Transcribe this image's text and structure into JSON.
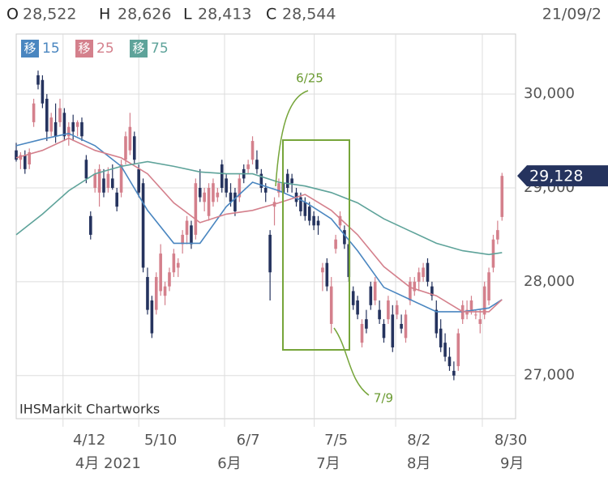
{
  "header": {
    "items": [
      {
        "label": "O",
        "value": "28,522"
      },
      {
        "label": "H",
        "value": "28,626"
      },
      {
        "label": "L",
        "value": "28,413"
      },
      {
        "label": "C",
        "value": "28,544"
      }
    ],
    "date": "21/09/2"
  },
  "chart_data": {
    "type": "candlestick",
    "source": "IHSMarkit Chartworks",
    "legend_prefix": "移",
    "up_color": "#d4808c",
    "down_color": "#25335e",
    "candles": [
      [
        29400,
        29480,
        29280,
        29300
      ],
      [
        29300,
        29380,
        29200,
        29350
      ],
      [
        29350,
        29400,
        29150,
        29200
      ],
      [
        29250,
        29420,
        29200,
        29380
      ],
      [
        29700,
        29950,
        29650,
        29900
      ],
      [
        30200,
        30250,
        30050,
        30100
      ],
      [
        30150,
        30200,
        29850,
        29900
      ],
      [
        29950,
        30000,
        29500,
        29600
      ],
      [
        29600,
        29800,
        29550,
        29750
      ],
      [
        29700,
        29900,
        29480,
        29550
      ],
      [
        29700,
        29950,
        29650,
        29850
      ],
      [
        29800,
        29850,
        29500,
        29550
      ],
      [
        29550,
        29700,
        29450,
        29650
      ],
      [
        29700,
        29780,
        29500,
        29600
      ],
      [
        29650,
        29720,
        29550,
        29700
      ],
      [
        29700,
        29750,
        29500,
        29550
      ],
      [
        29300,
        29350,
        29050,
        29100
      ],
      [
        28700,
        28750,
        28450,
        28500
      ],
      [
        29000,
        29200,
        28950,
        29150
      ],
      [
        28950,
        29250,
        28800,
        29200
      ],
      [
        29100,
        29200,
        28900,
        28950
      ],
      [
        29000,
        29220,
        28950,
        29150
      ],
      [
        29100,
        29250,
        28980,
        29000
      ],
      [
        28950,
        29000,
        28750,
        28800
      ],
      [
        28950,
        29300,
        28900,
        29250
      ],
      [
        29300,
        29600,
        29250,
        29550
      ],
      [
        29400,
        29800,
        29350,
        29650
      ],
      [
        29550,
        29600,
        29250,
        29300
      ],
      [
        29200,
        29250,
        28900,
        28950
      ],
      [
        29050,
        29100,
        28100,
        28150
      ],
      [
        28050,
        28150,
        27650,
        27700
      ],
      [
        27800,
        27850,
        27400,
        27450
      ],
      [
        27700,
        28100,
        27650,
        28050
      ],
      [
        27900,
        28400,
        27850,
        28300
      ],
      [
        27850,
        28000,
        27750,
        27950
      ],
      [
        27950,
        28150,
        27900,
        28100
      ],
      [
        28100,
        28350,
        28050,
        28300
      ],
      [
        28150,
        28250,
        28050,
        28200
      ],
      [
        28400,
        28550,
        28300,
        28500
      ],
      [
        28500,
        28700,
        28400,
        28650
      ],
      [
        28600,
        28650,
        28350,
        28400
      ],
      [
        28500,
        29100,
        28450,
        29050
      ],
      [
        29000,
        29200,
        28850,
        28900
      ],
      [
        28850,
        29000,
        28750,
        28950
      ],
      [
        28700,
        29050,
        28650,
        29000
      ],
      [
        28850,
        29100,
        28800,
        29050
      ],
      [
        28900,
        29000,
        28850,
        28950
      ],
      [
        29250,
        29300,
        28950,
        29000
      ],
      [
        29100,
        29150,
        28900,
        28950
      ],
      [
        28950,
        29050,
        28800,
        28850
      ],
      [
        28950,
        29000,
        28700,
        28750
      ],
      [
        28900,
        29150,
        28850,
        29100
      ],
      [
        29200,
        29250,
        29050,
        29100
      ],
      [
        29200,
        29300,
        29150,
        29250
      ],
      [
        29300,
        29550,
        29250,
        29500
      ],
      [
        29300,
        29400,
        29150,
        29200
      ],
      [
        29150,
        29200,
        28950,
        29000
      ],
      [
        29000,
        29050,
        28850,
        28950
      ],
      [
        28500,
        28550,
        27800,
        28100
      ],
      [
        28800,
        28900,
        28600,
        28850
      ],
      [
        28950,
        29100,
        28900,
        29050
      ],
      [
        29050,
        29100,
        28900,
        28950
      ],
      [
        29150,
        29200,
        28950,
        29000
      ],
      [
        29100,
        29150,
        28950,
        29050
      ],
      [
        28950,
        29000,
        28800,
        28850
      ],
      [
        28900,
        28950,
        28700,
        28750
      ],
      [
        28850,
        28900,
        28650,
        28700
      ],
      [
        28800,
        28850,
        28600,
        28650
      ],
      [
        28700,
        28750,
        28550,
        28600
      ],
      [
        28650,
        28700,
        28500,
        28600
      ],
      [
        28100,
        28200,
        27900,
        28150
      ],
      [
        28200,
        28250,
        27900,
        27950
      ],
      [
        27550,
        28050,
        27450,
        27950
      ],
      [
        28350,
        28500,
        28300,
        28450
      ],
      [
        28600,
        28750,
        28550,
        28700
      ],
      [
        28550,
        28600,
        28350,
        28400
      ],
      [
        28400,
        28450,
        28000,
        28050
      ],
      [
        27900,
        27950,
        27700,
        27750
      ],
      [
        27800,
        27850,
        27600,
        27650
      ],
      [
        27350,
        27600,
        27300,
        27550
      ],
      [
        27600,
        27700,
        27450,
        27500
      ],
      [
        27950,
        28000,
        27700,
        27750
      ],
      [
        27800,
        28050,
        27750,
        28000
      ],
      [
        27700,
        27800,
        27550,
        27600
      ],
      [
        27550,
        27600,
        27350,
        27400
      ],
      [
        27600,
        27850,
        27550,
        27800
      ],
      [
        27650,
        27750,
        27250,
        27300
      ],
      [
        27650,
        27800,
        27600,
        27750
      ],
      [
        27550,
        27650,
        27450,
        27500
      ],
      [
        27400,
        27700,
        27350,
        27650
      ],
      [
        27800,
        28050,
        27750,
        28000
      ],
      [
        27900,
        28050,
        27850,
        28000
      ],
      [
        28000,
        28150,
        27900,
        28100
      ],
      [
        28050,
        28200,
        28000,
        28150
      ],
      [
        28200,
        28250,
        27950,
        28000
      ],
      [
        27950,
        28000,
        27800,
        27850
      ],
      [
        27700,
        27800,
        27400,
        27450
      ],
      [
        27500,
        27600,
        27250,
        27300
      ],
      [
        27350,
        27450,
        27150,
        27200
      ],
      [
        27200,
        27300,
        27050,
        27100
      ],
      [
        27050,
        27150,
        26950,
        27000
      ],
      [
        27100,
        27500,
        27050,
        27450
      ],
      [
        27600,
        27800,
        27550,
        27750
      ],
      [
        27650,
        27800,
        27600,
        27700
      ],
      [
        27700,
        27850,
        27650,
        27800
      ],
      [
        27650,
        27700,
        27600,
        27650
      ],
      [
        27550,
        27700,
        27450,
        27600
      ],
      [
        27650,
        28000,
        27600,
        27950
      ],
      [
        27800,
        28150,
        27750,
        28100
      ],
      [
        28150,
        28500,
        28100,
        28450
      ],
      [
        28450,
        28650,
        28400,
        28550
      ],
      [
        28690,
        29160,
        28650,
        29128
      ]
    ],
    "series": [
      {
        "name": "15",
        "color": "#4a86c0",
        "x": [
          0,
          6,
          12,
          18,
          24,
          30,
          36,
          42,
          48,
          54,
          60,
          66,
          72,
          78,
          84,
          90,
          96,
          102,
          108,
          111
        ],
        "values": [
          29450,
          29520,
          29580,
          29450,
          29230,
          28760,
          28410,
          28410,
          28800,
          29060,
          28970,
          28850,
          28670,
          28330,
          27940,
          27810,
          27680,
          27680,
          27720,
          27810
        ]
      },
      {
        "name": "25",
        "color": "#d4808c",
        "x": [
          0,
          6,
          12,
          18,
          24,
          30,
          36,
          42,
          48,
          54,
          60,
          66,
          72,
          78,
          84,
          90,
          96,
          102,
          108,
          111
        ],
        "values": [
          29320,
          29400,
          29530,
          29400,
          29320,
          29150,
          28840,
          28630,
          28720,
          28760,
          28840,
          28930,
          28760,
          28500,
          28160,
          27940,
          27850,
          27680,
          27680,
          27810
        ]
      },
      {
        "name": "75",
        "color": "#5ea39a",
        "x": [
          0,
          6,
          12,
          18,
          24,
          30,
          36,
          42,
          48,
          54,
          60,
          66,
          72,
          78,
          84,
          90,
          96,
          102,
          108,
          111
        ],
        "values": [
          28500,
          28720,
          28970,
          29150,
          29230,
          29280,
          29230,
          29170,
          29150,
          29150,
          29060,
          29020,
          28950,
          28840,
          28670,
          28540,
          28410,
          28330,
          28290,
          28310
        ]
      }
    ],
    "last_price": {
      "value": 29128,
      "label": "29,128"
    },
    "annotations": [
      "6/25",
      "7/9"
    ],
    "xlim": [
      0,
      114.1
    ],
    "ylim": [
      26540,
      30640
    ],
    "yticks": [
      {
        "value": 27000,
        "label": "27,000"
      },
      {
        "value": 28000,
        "label": "28,000"
      },
      {
        "value": 29000,
        "label": "29,000"
      },
      {
        "value": 30000,
        "label": "30,000"
      }
    ],
    "xticks": [
      {
        "value": 16.7,
        "label": "4/12"
      },
      {
        "value": 33,
        "label": "5/10"
      },
      {
        "value": 53,
        "label": "6/7"
      },
      {
        "value": 73.1,
        "label": "7/5"
      },
      {
        "value": 92,
        "label": "8/2"
      },
      {
        "value": 113,
        "label": "8/30"
      }
    ],
    "month_ticks": [
      {
        "value": 21,
        "label": "4月 2021"
      },
      {
        "value": 48.7,
        "label": "6月"
      },
      {
        "value": 71.3,
        "label": "7月"
      },
      {
        "value": 92,
        "label": "8月"
      },
      {
        "value": 113.3,
        "label": "9月"
      }
    ],
    "xgrid": [
      10.7,
      28,
      47.6,
      68.1,
      86.7,
      106.5
    ],
    "grid": true
  }
}
